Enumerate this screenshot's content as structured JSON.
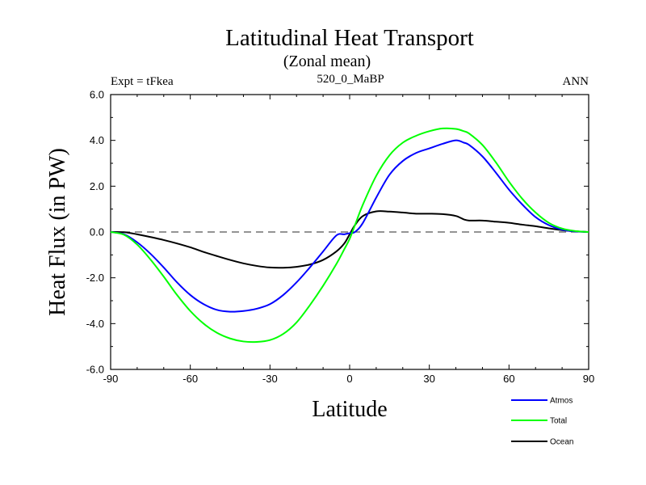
{
  "chart_data": {
    "type": "line",
    "title": "Latitudinal Heat Transport",
    "subtitle": "(Zonal mean)",
    "left_label": "Expt = tFkea",
    "center_label": "520_0_MaBP",
    "right_label": "ANN",
    "xlabel": "Latitude",
    "ylabel": "Heat Flux (in PW)",
    "xlim": [
      -90,
      90
    ],
    "ylim": [
      -6,
      6
    ],
    "xticks": [
      -90,
      -60,
      -30,
      0,
      30,
      60,
      90
    ],
    "xtick_labels": [
      "-90",
      "-60",
      "-30",
      "0",
      "30",
      "60",
      "90"
    ],
    "yticks": [
      6,
      4,
      2,
      0,
      -2,
      -4,
      -6
    ],
    "ytick_labels": [
      "6.0",
      "4.0",
      "2.0",
      "0.0",
      "-2.0",
      "-4.0",
      "-6.0"
    ],
    "zero_line": true,
    "grid": false,
    "legend_position": "bottom-right",
    "x": [
      -90,
      -85,
      -80,
      -75,
      -70,
      -65,
      -60,
      -55,
      -50,
      -45,
      -40,
      -35,
      -30,
      -25,
      -20,
      -15,
      -10,
      -5,
      -2,
      0,
      2,
      5,
      10,
      15,
      20,
      25,
      30,
      35,
      40,
      43,
      45,
      50,
      55,
      60,
      65,
      70,
      75,
      80,
      85,
      90
    ],
    "series": [
      {
        "name": "Atmos",
        "color": "#0000ff",
        "values": [
          0,
          -0.1,
          -0.45,
          -0.95,
          -1.55,
          -2.2,
          -2.75,
          -3.15,
          -3.4,
          -3.48,
          -3.45,
          -3.35,
          -3.15,
          -2.75,
          -2.2,
          -1.55,
          -0.85,
          -0.15,
          -0.1,
          -0.05,
          0,
          0.4,
          1.5,
          2.5,
          3.1,
          3.45,
          3.65,
          3.85,
          4.0,
          3.9,
          3.8,
          3.3,
          2.6,
          1.85,
          1.2,
          0.65,
          0.3,
          0.1,
          0.02,
          0
        ]
      },
      {
        "name": "Total",
        "color": "#00ff00",
        "values": [
          0,
          -0.12,
          -0.55,
          -1.2,
          -1.95,
          -2.75,
          -3.45,
          -4.0,
          -4.4,
          -4.65,
          -4.78,
          -4.8,
          -4.72,
          -4.45,
          -3.95,
          -3.2,
          -2.35,
          -1.4,
          -0.75,
          -0.3,
          0.3,
          1.2,
          2.45,
          3.35,
          3.9,
          4.2,
          4.4,
          4.52,
          4.5,
          4.4,
          4.3,
          3.8,
          3.05,
          2.2,
          1.45,
          0.85,
          0.4,
          0.15,
          0.04,
          0
        ]
      },
      {
        "name": "Ocean",
        "color": "#000000",
        "values": [
          0,
          -0.01,
          -0.1,
          -0.22,
          -0.35,
          -0.5,
          -0.67,
          -0.87,
          -1.05,
          -1.22,
          -1.37,
          -1.48,
          -1.55,
          -1.56,
          -1.52,
          -1.42,
          -1.22,
          -0.85,
          -0.5,
          -0.1,
          0.3,
          0.7,
          0.9,
          0.89,
          0.85,
          0.8,
          0.8,
          0.78,
          0.7,
          0.55,
          0.5,
          0.5,
          0.45,
          0.4,
          0.32,
          0.25,
          0.16,
          0.08,
          0.03,
          0
        ]
      }
    ]
  }
}
